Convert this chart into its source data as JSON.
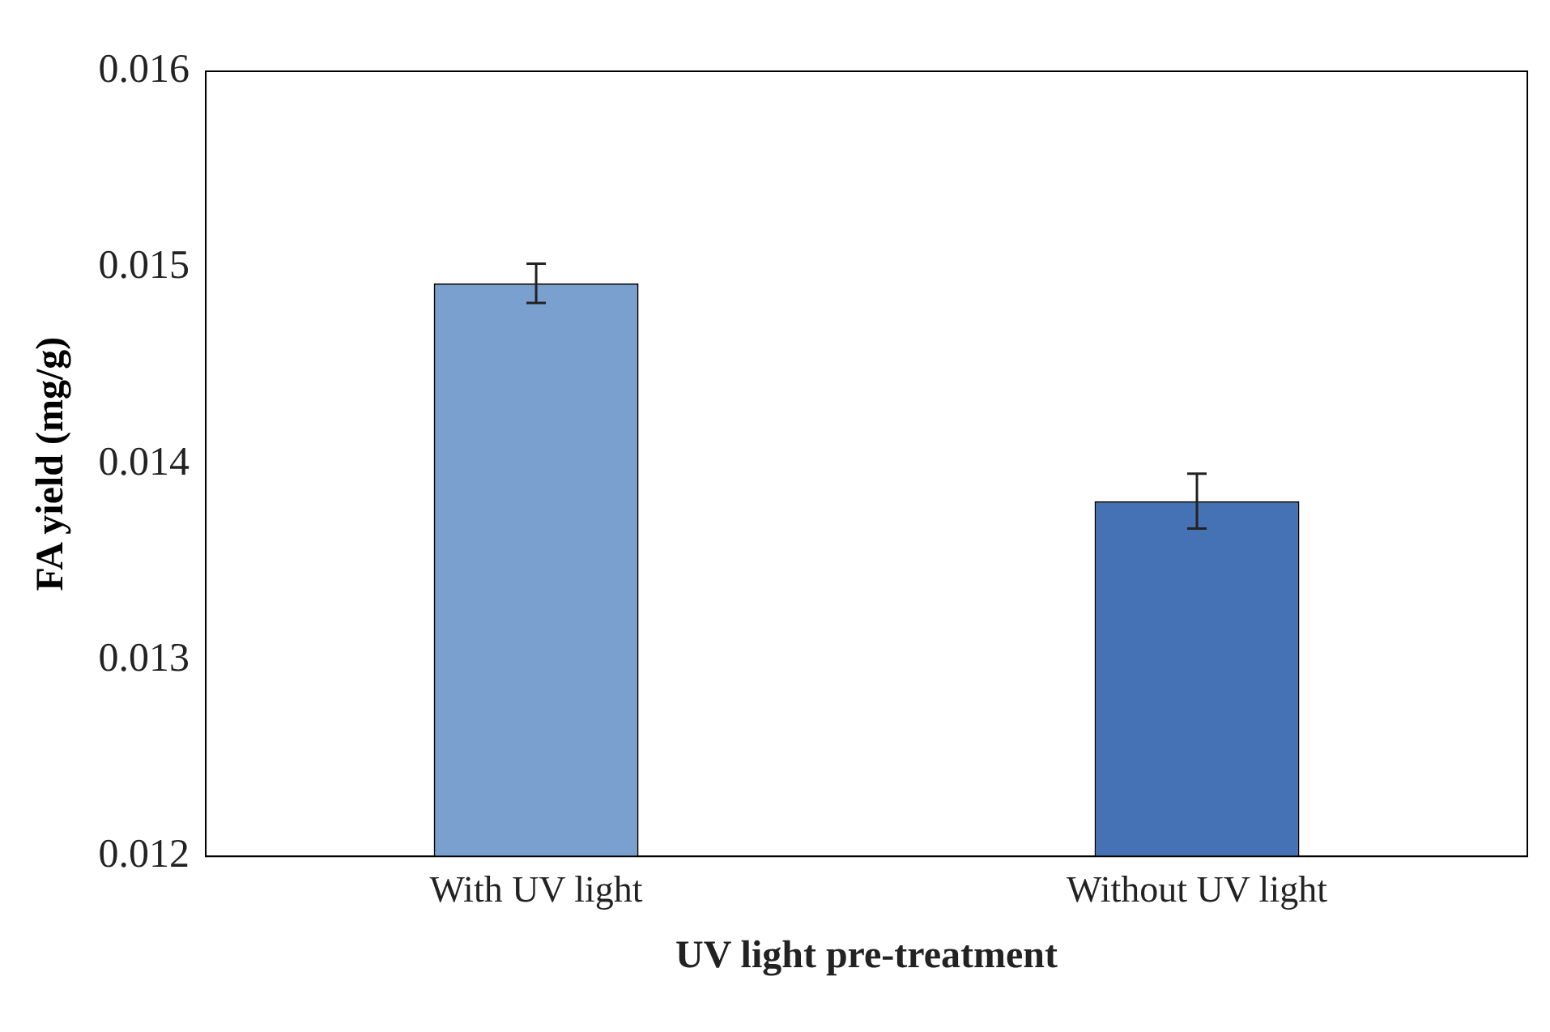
{
  "chart_data": {
    "type": "bar",
    "xlabel": "UV light pre-treatment",
    "ylabel": "FA yield (mg/g)",
    "categories": [
      "With UV light",
      "Without UV light"
    ],
    "values": [
      0.01492,
      0.01381
    ],
    "errors": [
      0.0001,
      0.00014
    ],
    "colors": [
      "#7aa0cf",
      "#4472b4"
    ],
    "ylim": [
      0.012,
      0.016
    ],
    "yticks": [
      0.012,
      0.013,
      0.014,
      0.015,
      0.016
    ],
    "grid": false,
    "legend": false
  }
}
